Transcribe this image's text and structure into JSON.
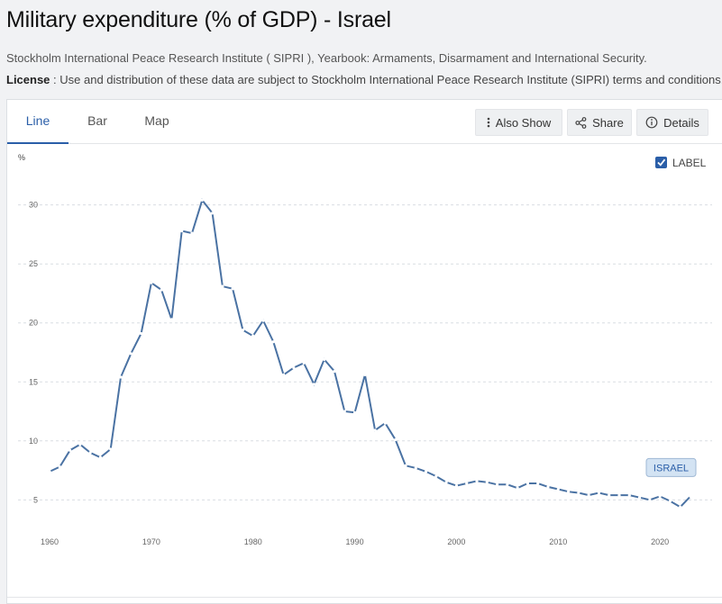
{
  "page": {
    "title": "Military expenditure (% of GDP) - Israel",
    "source": "Stockholm International Peace Research Institute ( SIPRI ), Yearbook: Armaments, Disarmament and International Security.",
    "license_label": "License",
    "license_text": " : Use and distribution of these data are subject to Stockholm International Peace Research Institute (SIPRI) terms and conditions."
  },
  "tabs": [
    {
      "label": "Line"
    },
    {
      "label": "Bar"
    },
    {
      "label": "Map"
    }
  ],
  "toolbar": {
    "also_show": "Also Show",
    "share": "Share",
    "details": "Details"
  },
  "label_toggle": "LABEL",
  "colors": {
    "accent": "#2a5ea8",
    "line": "#4a72a3",
    "grid": "#d9dde2",
    "badge_bg": "#d3e3f3"
  },
  "chart_data": {
    "type": "line",
    "title": "Military expenditure (% of GDP) - Israel",
    "ylabel": "%",
    "xlabel": "",
    "xlim": [
      1960,
      2023
    ],
    "ylim": [
      3.5,
      31.5
    ],
    "yticks": [
      5,
      10,
      15,
      20,
      25,
      30
    ],
    "xticks": [
      1960,
      1970,
      1980,
      1990,
      2000,
      2010,
      2020
    ],
    "grid": true,
    "series": [
      {
        "name": "ISRAEL",
        "label": "ISRAEL",
        "x": [
          1960,
          1961,
          1962,
          1963,
          1964,
          1965,
          1966,
          1967,
          1968,
          1969,
          1970,
          1971,
          1972,
          1973,
          1974,
          1975,
          1976,
          1977,
          1978,
          1979,
          1980,
          1981,
          1982,
          1983,
          1984,
          1985,
          1986,
          1987,
          1988,
          1989,
          1990,
          1991,
          1992,
          1993,
          1994,
          1995,
          1996,
          1997,
          1998,
          1999,
          2000,
          2001,
          2002,
          2003,
          2004,
          2005,
          2006,
          2007,
          2008,
          2009,
          2010,
          2011,
          2012,
          2013,
          2014,
          2015,
          2016,
          2017,
          2018,
          2019,
          2020,
          2021,
          2022,
          2023
        ],
        "values": [
          7.4,
          7.8,
          9.2,
          9.7,
          9.0,
          8.6,
          9.3,
          15.4,
          17.4,
          19.1,
          23.4,
          22.8,
          20.3,
          27.8,
          27.6,
          30.4,
          29.3,
          23.1,
          22.9,
          19.4,
          18.9,
          20.2,
          18.4,
          15.6,
          16.2,
          16.6,
          14.8,
          16.9,
          15.9,
          12.5,
          12.4,
          15.6,
          10.9,
          11.5,
          10.1,
          7.9,
          7.7,
          7.4,
          7.0,
          6.5,
          6.2,
          6.4,
          6.6,
          6.5,
          6.3,
          6.3,
          6.0,
          6.4,
          6.4,
          6.1,
          5.9,
          5.7,
          5.6,
          5.4,
          5.6,
          5.4,
          5.4,
          5.4,
          5.2,
          5.0,
          5.3,
          4.9,
          4.4,
          5.3
        ]
      }
    ]
  }
}
